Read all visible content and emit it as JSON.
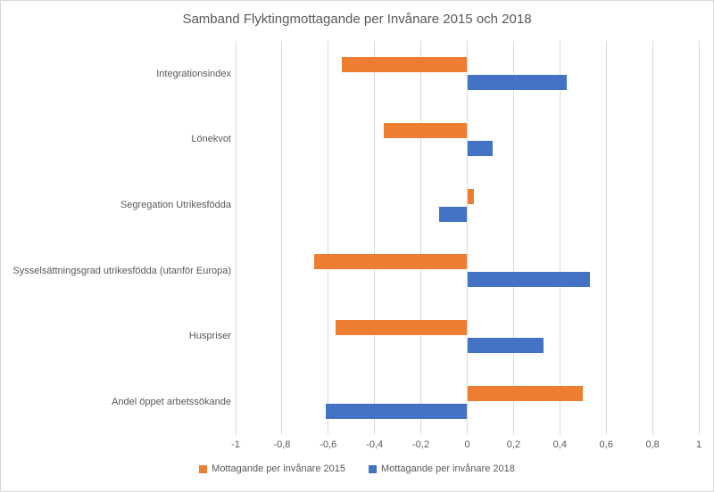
{
  "title": "Samband Flyktingmottagande per Invånare 2015 och 2018",
  "colors": {
    "series_2015": "#ED7D31",
    "series_2018": "#4472C4",
    "gridline": "#D9D9D9",
    "text": "#595959",
    "frame_border": "#D9D9D9"
  },
  "chart_data": {
    "type": "bar",
    "orientation": "horizontal",
    "title": "Samband Flyktingmottagande per Invånare 2015 och 2018",
    "categories": [
      "Integrationsindex",
      "Lönekvot",
      "Segregation Utrikesfödda",
      "Sysselsättningsgrad utrikesfödda (utanför Europa)",
      "Huspriser",
      "Andel öppet arbetssökande"
    ],
    "series": [
      {
        "name": "Mottagande per invånare 2015",
        "color": "#ED7D31",
        "values": [
          -0.54,
          -0.36,
          0.03,
          -0.66,
          -0.57,
          0.5
        ]
      },
      {
        "name": "Mottagande per invånare 2018",
        "color": "#4472C4",
        "values": [
          0.43,
          0.11,
          -0.12,
          0.53,
          0.33,
          -0.61
        ]
      }
    ],
    "xlim": [
      -1,
      1
    ],
    "xticks": [
      -1,
      -0.8,
      -0.6,
      -0.4,
      -0.2,
      0,
      0.2,
      0.4,
      0.6,
      0.8,
      1
    ],
    "xtick_labels": [
      "-1",
      "-0,8",
      "-0,6",
      "-0,4",
      "-0,2",
      "0",
      "0,2",
      "0,4",
      "0,6",
      "0,8",
      "1"
    ],
    "grid": "vertical",
    "legend_position": "bottom"
  }
}
